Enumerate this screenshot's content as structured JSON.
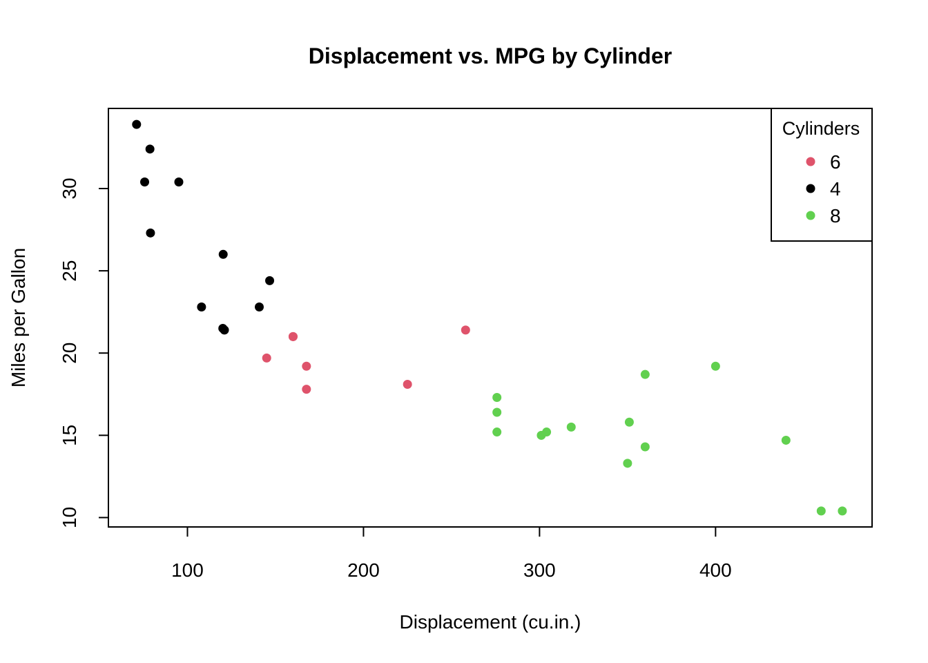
{
  "chart_data": {
    "type": "scatter",
    "title": "Displacement vs. MPG by Cylinder",
    "xlabel": "Displacement (cu.in.)",
    "ylabel": "Miles per Gallon",
    "xlim": [
      55.1,
      488.9
    ],
    "ylim": [
      9.43,
      34.87
    ],
    "x_ticks": [
      100,
      200,
      300,
      400
    ],
    "y_ticks": [
      10,
      15,
      20,
      25,
      30
    ],
    "grid": false,
    "legend": {
      "title": "Cylinders",
      "position": "top-right",
      "entries": [
        {
          "label": "6",
          "color": "#DF536B"
        },
        {
          "label": "4",
          "color": "#000000"
        },
        {
          "label": "8",
          "color": "#61D04F"
        }
      ]
    },
    "series": [
      {
        "name": "6",
        "color": "#DF536B",
        "points": [
          {
            "x": 160,
            "y": 21.0
          },
          {
            "x": 160,
            "y": 21.0
          },
          {
            "x": 258,
            "y": 21.4
          },
          {
            "x": 225,
            "y": 18.1
          },
          {
            "x": 167.6,
            "y": 19.2
          },
          {
            "x": 167.6,
            "y": 17.8
          },
          {
            "x": 145,
            "y": 19.7
          }
        ]
      },
      {
        "name": "4",
        "color": "#000000",
        "points": [
          {
            "x": 108,
            "y": 22.8
          },
          {
            "x": 146.7,
            "y": 24.4
          },
          {
            "x": 140.8,
            "y": 22.8
          },
          {
            "x": 78.7,
            "y": 32.4
          },
          {
            "x": 75.7,
            "y": 30.4
          },
          {
            "x": 71.1,
            "y": 33.9
          },
          {
            "x": 120.1,
            "y": 21.5
          },
          {
            "x": 79,
            "y": 27.3
          },
          {
            "x": 120.3,
            "y": 26.0
          },
          {
            "x": 95.1,
            "y": 30.4
          },
          {
            "x": 121,
            "y": 21.4
          }
        ]
      },
      {
        "name": "8",
        "color": "#61D04F",
        "points": [
          {
            "x": 360,
            "y": 18.7
          },
          {
            "x": 360,
            "y": 14.3
          },
          {
            "x": 275.8,
            "y": 16.4
          },
          {
            "x": 275.8,
            "y": 17.3
          },
          {
            "x": 275.8,
            "y": 15.2
          },
          {
            "x": 472,
            "y": 10.4
          },
          {
            "x": 460,
            "y": 10.4
          },
          {
            "x": 440,
            "y": 14.7
          },
          {
            "x": 318,
            "y": 15.5
          },
          {
            "x": 304,
            "y": 15.2
          },
          {
            "x": 350,
            "y": 13.3
          },
          {
            "x": 400,
            "y": 19.2
          },
          {
            "x": 351,
            "y": 15.8
          },
          {
            "x": 301,
            "y": 15.0
          }
        ]
      }
    ]
  }
}
